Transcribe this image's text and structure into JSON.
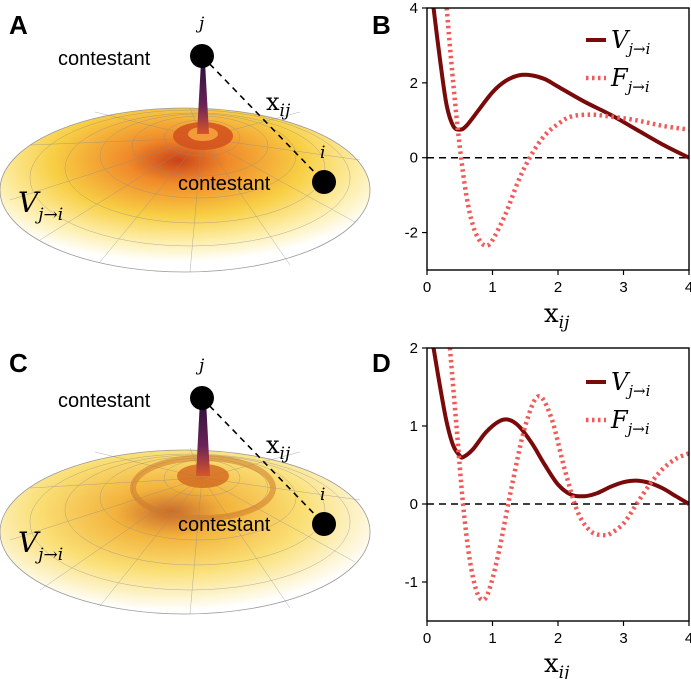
{
  "figure": {
    "panels": {
      "A": {
        "letter": "A",
        "contestant_top": "contestant",
        "contestant_right": "contestant",
        "index_top": "j",
        "index_right": "i",
        "distance_label": "x",
        "distance_sub": "ij",
        "potential_label": "V",
        "potential_sub": "j→i"
      },
      "C": {
        "letter": "C",
        "contestant_top": "contestant",
        "contestant_right": "contestant",
        "index_top": "j",
        "index_right": "i",
        "distance_label": "x",
        "distance_sub": "ij",
        "potential_label": "V",
        "potential_sub": "j→i"
      }
    },
    "colors": {
      "V_curve": "#7a0a0a",
      "F_curve": "#f25a5a",
      "surface_light": "#fff6c2",
      "surface_mid": "#f8c23a",
      "surface_dark": "#e0581a",
      "spike": "#5a1d5c"
    }
  },
  "chart_data": [
    {
      "panel": "B",
      "type": "line",
      "letter": "B",
      "xlabel": "x",
      "xlabel_sub": "ij",
      "xlim": [
        0,
        4
      ],
      "ylim": [
        -3,
        4
      ],
      "xticks": [
        "0",
        "1",
        "2",
        "3",
        "4"
      ],
      "yticks": [
        "4",
        "2",
        "0",
        "-2"
      ],
      "ytick_values": [
        4,
        2,
        0,
        -2
      ],
      "zero_line": "dashed",
      "grid": false,
      "legend_position": "top-right",
      "series": [
        {
          "name": "V",
          "name_sub": "j→i",
          "style": "solid",
          "x": [
            0.1,
            0.2,
            0.3,
            0.4,
            0.5,
            0.6,
            0.8,
            1.0,
            1.2,
            1.4,
            1.6,
            1.8,
            2.0,
            2.4,
            2.8,
            3.2,
            3.6,
            4.0
          ],
          "y": [
            4.0,
            2.6,
            1.4,
            0.85,
            0.75,
            0.85,
            1.3,
            1.75,
            2.05,
            2.2,
            2.2,
            2.1,
            1.9,
            1.5,
            1.15,
            0.75,
            0.35,
            0.0
          ]
        },
        {
          "name": "F",
          "name_sub": "j→i",
          "style": "dotted",
          "x": [
            0.3,
            0.4,
            0.5,
            0.6,
            0.7,
            0.8,
            0.9,
            1.0,
            1.2,
            1.4,
            1.6,
            1.8,
            2.0,
            2.2,
            2.5,
            2.8,
            3.2,
            3.6,
            4.0
          ],
          "y": [
            4.0,
            2.0,
            0.3,
            -1.0,
            -1.8,
            -2.2,
            -2.35,
            -2.2,
            -1.5,
            -0.6,
            0.1,
            0.6,
            0.9,
            1.1,
            1.15,
            1.1,
            1.0,
            0.85,
            0.75
          ]
        }
      ]
    },
    {
      "panel": "D",
      "type": "line",
      "letter": "D",
      "xlabel": "x",
      "xlabel_sub": "ij",
      "xlim": [
        0,
        4
      ],
      "ylim": [
        -1.5,
        2
      ],
      "xticks": [
        "0",
        "1",
        "2",
        "3",
        "4"
      ],
      "yticks": [
        "2",
        "1",
        "0",
        "-1"
      ],
      "ytick_values": [
        2,
        1,
        0,
        -1
      ],
      "zero_line": "dashed",
      "grid": false,
      "legend_position": "top-right",
      "series": [
        {
          "name": "V",
          "name_sub": "j→i",
          "style": "solid",
          "x": [
            0.1,
            0.2,
            0.3,
            0.4,
            0.5,
            0.55,
            0.7,
            0.9,
            1.1,
            1.25,
            1.4,
            1.6,
            1.8,
            2.0,
            2.2,
            2.4,
            2.6,
            2.8,
            3.0,
            3.2,
            3.4,
            3.6,
            3.8,
            4.0
          ],
          "y": [
            2.0,
            1.5,
            1.05,
            0.75,
            0.62,
            0.6,
            0.7,
            0.92,
            1.06,
            1.08,
            1.0,
            0.78,
            0.5,
            0.25,
            0.12,
            0.1,
            0.14,
            0.22,
            0.28,
            0.3,
            0.27,
            0.2,
            0.1,
            0.0
          ]
        },
        {
          "name": "F",
          "name_sub": "j→i",
          "style": "dotted",
          "x": [
            0.35,
            0.45,
            0.55,
            0.65,
            0.75,
            0.85,
            0.95,
            1.1,
            1.3,
            1.5,
            1.7,
            1.9,
            2.1,
            2.3,
            2.5,
            2.7,
            2.8,
            3.0,
            3.2,
            3.4,
            3.6,
            3.8,
            4.0
          ],
          "y": [
            2.0,
            1.0,
            0.0,
            -0.7,
            -1.1,
            -1.23,
            -1.1,
            -0.6,
            0.25,
            1.0,
            1.38,
            1.1,
            0.45,
            -0.1,
            -0.35,
            -0.4,
            -0.38,
            -0.25,
            0.0,
            0.25,
            0.45,
            0.58,
            0.65
          ]
        }
      ]
    }
  ]
}
